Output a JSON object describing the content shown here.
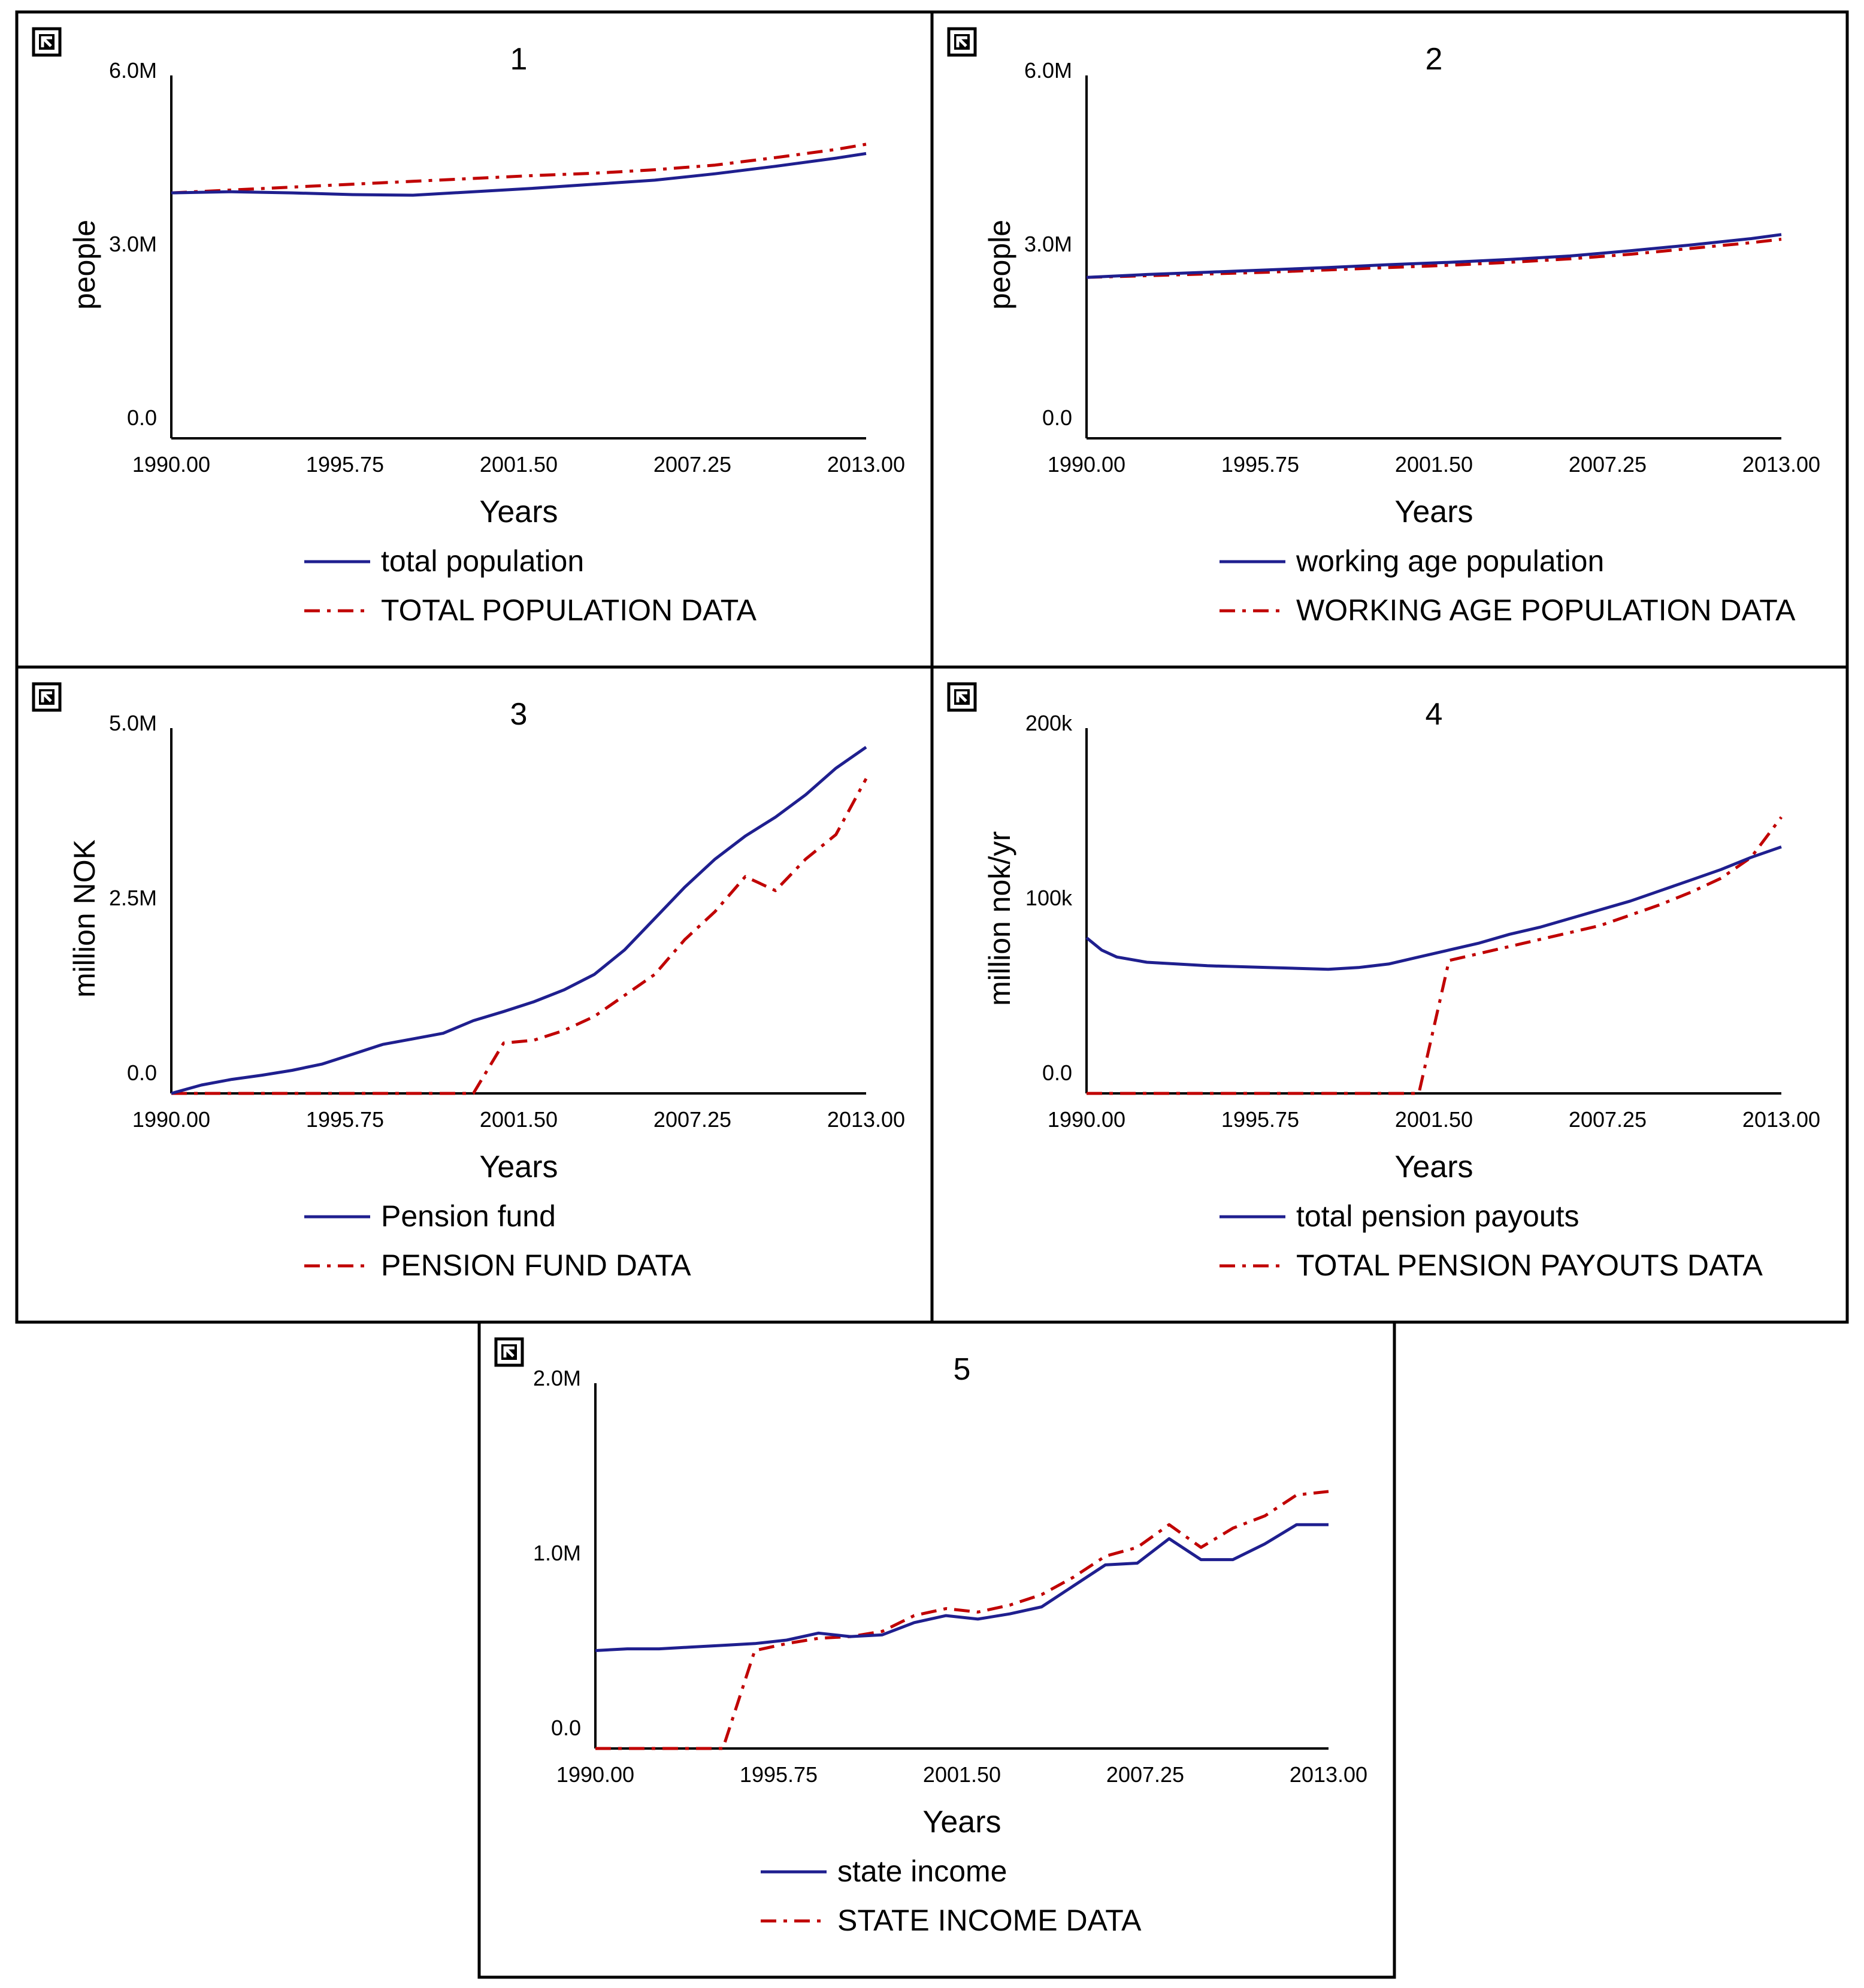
{
  "colors": {
    "model": "#1f1f8f",
    "data": "#c00000",
    "frame": "#000000",
    "axis": "#000000"
  },
  "icon": "corner-arrow-icon",
  "chart_data": [
    {
      "title": "1",
      "type": "line",
      "xlabel": "Years",
      "ylabel": "people",
      "xlim": [
        1990,
        2013
      ],
      "ylim": [
        0,
        6000000
      ],
      "x_ticks": [
        "1990.00",
        "1995.75",
        "2001.50",
        "2007.25",
        "2013.00"
      ],
      "y_ticks": [
        "0.0",
        "3.0M",
        "6.0M"
      ],
      "x": [
        1990,
        1992,
        1994,
        1996,
        1998,
        2000,
        2002,
        2004,
        2006,
        2008,
        2010,
        2012,
        2013
      ],
      "series": [
        {
          "name": "total population",
          "style": "solid",
          "values": [
            4240000,
            4260000,
            4240000,
            4210000,
            4200000,
            4260000,
            4320000,
            4390000,
            4460000,
            4570000,
            4700000,
            4840000,
            4920000
          ]
        },
        {
          "name": "TOTAL POPULATION DATA",
          "style": "dashdot",
          "values": [
            4240000,
            4290000,
            4340000,
            4390000,
            4440000,
            4490000,
            4540000,
            4580000,
            4640000,
            4720000,
            4850000,
            4990000,
            5080000
          ]
        }
      ]
    },
    {
      "title": "2",
      "type": "line",
      "xlabel": "Years",
      "ylabel": "people",
      "xlim": [
        1990,
        2013
      ],
      "ylim": [
        0,
        6000000
      ],
      "x_ticks": [
        "1990.00",
        "1995.75",
        "2001.50",
        "2007.25",
        "2013.00"
      ],
      "y_ticks": [
        "0.0",
        "3.0M",
        "6.0M"
      ],
      "x": [
        1990,
        1992,
        1994,
        1996,
        1998,
        2000,
        2002,
        2004,
        2006,
        2008,
        2010,
        2012,
        2013
      ],
      "series": [
        {
          "name": "working age population",
          "style": "solid",
          "values": [
            2780000,
            2830000,
            2870000,
            2910000,
            2950000,
            3000000,
            3040000,
            3090000,
            3150000,
            3240000,
            3340000,
            3450000,
            3520000
          ]
        },
        {
          "name": "WORKING AGE POPULATION DATA",
          "style": "dashdot",
          "values": [
            2780000,
            2810000,
            2840000,
            2870000,
            2910000,
            2950000,
            2990000,
            3040000,
            3100000,
            3180000,
            3280000,
            3380000,
            3440000
          ]
        }
      ]
    },
    {
      "title": "3",
      "type": "line",
      "xlabel": "Years",
      "ylabel": "million NOK",
      "xlim": [
        1990,
        2013
      ],
      "ylim": [
        0,
        5000000
      ],
      "x_ticks": [
        "1990.00",
        "1995.75",
        "2001.50",
        "2007.25",
        "2013.00"
      ],
      "y_ticks": [
        "0.0",
        "2.5M",
        "5.0M"
      ],
      "x": [
        1990,
        1991,
        1992,
        1993,
        1994,
        1995,
        1996,
        1997,
        1998,
        1999,
        2000,
        2001,
        2002,
        2003,
        2004,
        2005,
        2006,
        2007,
        2008,
        2009,
        2010,
        2011,
        2012,
        2013
      ],
      "series": [
        {
          "name": "Pension fund",
          "style": "solid",
          "values": [
            0,
            120000,
            200000,
            260000,
            330000,
            420000,
            560000,
            700000,
            780000,
            860000,
            1040000,
            1170000,
            1310000,
            1480000,
            1700000,
            2050000,
            2500000,
            2950000,
            3350000,
            3680000,
            3950000,
            4270000,
            4650000,
            4950000
          ]
        },
        {
          "name": "PENSION FUND DATA",
          "style": "dashdot",
          "values": [
            0,
            0,
            0,
            0,
            0,
            0,
            0,
            0,
            0,
            0,
            0,
            720000,
            760000,
            900000,
            1100000,
            1400000,
            1700000,
            2200000,
            2600000,
            3100000,
            2900000,
            3350000,
            3700000,
            4500000
          ]
        }
      ]
    },
    {
      "title": "4",
      "type": "line",
      "xlabel": "Years",
      "ylabel": "million nok/yr",
      "xlim": [
        1990,
        2013
      ],
      "ylim": [
        0,
        200000
      ],
      "x_ticks": [
        "1990.00",
        "1995.75",
        "2001.50",
        "2007.25",
        "2013.00"
      ],
      "y_ticks": [
        "0.0",
        "100k",
        "200k"
      ],
      "x": [
        1990,
        1990.5,
        1991,
        1992,
        1993,
        1994,
        1995,
        1996,
        1997,
        1998,
        1999,
        2000,
        2001,
        2002,
        2003,
        2004,
        2005,
        2006,
        2007,
        2008,
        2009,
        2010,
        2011,
        2012,
        2013
      ],
      "series": [
        {
          "name": "total pension payouts",
          "style": "solid",
          "values": [
            89000,
            82000,
            78000,
            75000,
            74000,
            73000,
            72500,
            72000,
            71500,
            71000,
            72000,
            74000,
            78000,
            82000,
            86000,
            91000,
            95000,
            100000,
            105000,
            110000,
            116000,
            122000,
            128000,
            135000,
            141000
          ]
        },
        {
          "name": "TOTAL PENSION PAYOUTS DATA",
          "style": "dashdot",
          "values": [
            0,
            0,
            0,
            0,
            0,
            0,
            0,
            0,
            0,
            0,
            0,
            0,
            0,
            76000,
            80000,
            84000,
            88000,
            92000,
            96000,
            102000,
            108000,
            115000,
            123000,
            135000,
            158000
          ]
        }
      ]
    },
    {
      "title": "5",
      "type": "line",
      "xlabel": "Years",
      "ylabel": "",
      "xlim": [
        1990,
        2013
      ],
      "ylim": [
        0,
        2000000
      ],
      "x_ticks": [
        "1990.00",
        "1995.75",
        "2001.50",
        "2007.25",
        "2013.00"
      ],
      "y_ticks": [
        "0.0",
        "1.0M",
        "2.0M"
      ],
      "x": [
        1990,
        1991,
        1992,
        1993,
        1994,
        1995,
        1996,
        1997,
        1998,
        1999,
        2000,
        2001,
        2002,
        2003,
        2004,
        2005,
        2006,
        2007,
        2008,
        2009,
        2010,
        2011,
        2012,
        2013
      ],
      "series": [
        {
          "name": "state income",
          "style": "solid",
          "values": [
            560000,
            570000,
            570000,
            580000,
            590000,
            600000,
            620000,
            660000,
            640000,
            650000,
            720000,
            760000,
            740000,
            770000,
            810000,
            930000,
            1050000,
            1060000,
            1200000,
            1080000,
            1080000,
            1170000,
            1280000,
            1280000
          ]
        },
        {
          "name": "STATE INCOME DATA",
          "style": "dashdot",
          "values": [
            0,
            0,
            0,
            0,
            0,
            560000,
            600000,
            630000,
            640000,
            670000,
            760000,
            800000,
            780000,
            820000,
            880000,
            980000,
            1100000,
            1150000,
            1280000,
            1150000,
            1260000,
            1330000,
            1450000,
            1470000
          ]
        }
      ]
    }
  ]
}
